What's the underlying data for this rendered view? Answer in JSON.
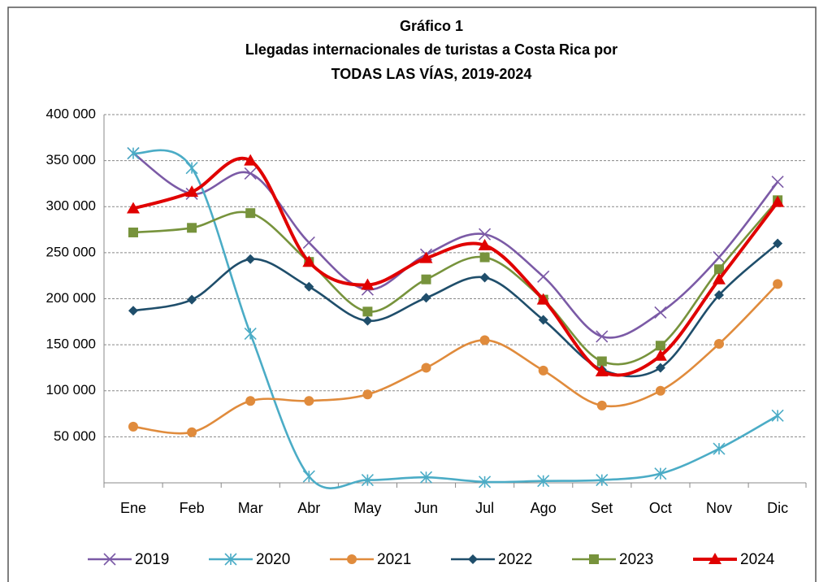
{
  "chart_data": {
    "type": "line",
    "title": [
      "Gráfico 1",
      "Llegadas internacionales de turistas a Costa Rica por",
      "TODAS LAS VÍAS, 2019-2024"
    ],
    "categories": [
      "Ene",
      "Feb",
      "Mar",
      "Abr",
      "May",
      "Jun",
      "Jul",
      "Ago",
      "Set",
      "Oct",
      "Nov",
      "Dic"
    ],
    "ylim": [
      0,
      400000
    ],
    "yticks": [
      {
        "value": 50000,
        "label": "50 000"
      },
      {
        "value": 100000,
        "label": "100 000"
      },
      {
        "value": 150000,
        "label": "150 000"
      },
      {
        "value": 200000,
        "label": "200 000"
      },
      {
        "value": 250000,
        "label": "250 000"
      },
      {
        "value": 300000,
        "label": "300 000"
      },
      {
        "value": 350000,
        "label": "350 000"
      },
      {
        "value": 400000,
        "label": "400 000"
      }
    ],
    "grid": true,
    "legend": "bottom",
    "series": [
      {
        "name": "2019",
        "color": "#7b5aa6",
        "marker": "x",
        "values": [
          358000,
          314000,
          336000,
          261000,
          210000,
          248000,
          270000,
          224000,
          159000,
          185000,
          245000,
          327000
        ]
      },
      {
        "name": "2020",
        "color": "#4bacc6",
        "marker": "star",
        "values": [
          358000,
          342000,
          162000,
          7000,
          3000,
          6000,
          1000,
          2000,
          3000,
          10000,
          37000,
          73000
        ]
      },
      {
        "name": "2021",
        "color": "#e08b3c",
        "marker": "circle",
        "values": [
          61000,
          55000,
          89000,
          89000,
          96000,
          125000,
          155000,
          122000,
          84000,
          100000,
          151000,
          216000
        ]
      },
      {
        "name": "2022",
        "color": "#1f4e6b",
        "marker": "diamond",
        "values": [
          187000,
          199000,
          243000,
          213000,
          176000,
          201000,
          223000,
          177000,
          123000,
          125000,
          204000,
          260000
        ]
      },
      {
        "name": "2023",
        "color": "#77933c",
        "marker": "square",
        "values": [
          272000,
          277000,
          293000,
          240000,
          186000,
          221000,
          245000,
          199000,
          132000,
          149000,
          232000,
          307000
        ]
      },
      {
        "name": "2024",
        "color": "#e00000",
        "marker": "triangle",
        "values": [
          298000,
          316000,
          350000,
          240000,
          215000,
          244000,
          258000,
          199000,
          121000,
          138000,
          221000,
          305000
        ]
      }
    ]
  }
}
